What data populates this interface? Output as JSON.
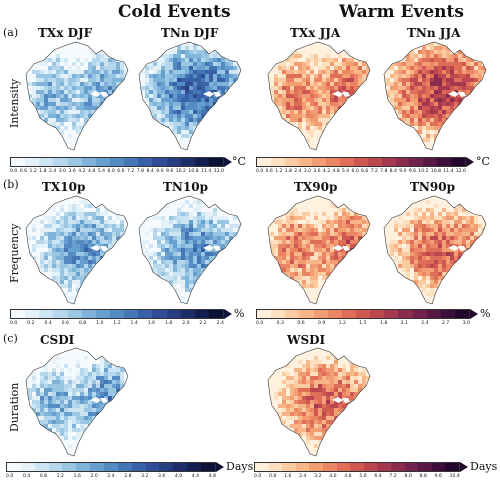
{
  "headers": {
    "cold": "Cold Events",
    "warm": "Warm Events"
  },
  "rows": [
    {
      "label": "(a)",
      "name": "Intensity"
    },
    {
      "label": "(b)",
      "name": "Frequency"
    },
    {
      "label": "(c)",
      "name": "Duration"
    }
  ],
  "panels": {
    "txx_djf": "TXx DJF",
    "tnn_djf": "TNn DJF",
    "txx_jja": "TXx JJA",
    "tnn_jja": "TNn JJA",
    "tx10p": "TX10p",
    "tn10p": "TN10p",
    "tx90p": "TX90p",
    "tn90p": "TN90p",
    "csdi": "CSDI",
    "wsdi": "WSDI"
  },
  "colorbars": {
    "intensity_cold": {
      "unit": "°C",
      "ticks": [
        "0.0",
        "0.6",
        "1.2",
        "1.8",
        "2.4",
        "3.0",
        "3.6",
        "4.2",
        "4.8",
        "5.4",
        "6.0",
        "6.6",
        "7.2",
        "7.8",
        "8.4",
        "9.0",
        "9.6",
        "10.2",
        "10.8",
        "11.4",
        "12.0"
      ]
    },
    "intensity_warm": {
      "unit": "°C",
      "ticks": [
        "0.0",
        "0.6",
        "1.2",
        "1.8",
        "2.4",
        "3.0",
        "3.6",
        "4.2",
        "4.8",
        "5.4",
        "6.0",
        "6.6",
        "7.2",
        "7.8",
        "8.4",
        "9.0",
        "9.6",
        "10.2",
        "10.8",
        "11.4",
        "12.0"
      ]
    },
    "frequency_cold": {
      "unit": "%",
      "ticks": [
        "0.0",
        "0.2",
        "0.4",
        "0.6",
        "0.8",
        "1.0",
        "1.2",
        "1.4",
        "1.6",
        "1.8",
        "2.0",
        "2.2",
        "2.4"
      ]
    },
    "frequency_warm": {
      "unit": "%",
      "ticks": [
        "0.0",
        "0.3",
        "0.6",
        "0.9",
        "1.2",
        "1.5",
        "1.8",
        "2.1",
        "2.4",
        "2.7",
        "3.0"
      ]
    },
    "duration_cold": {
      "unit": "Days",
      "ticks": [
        "0.0",
        "0.4",
        "0.8",
        "1.2",
        "1.6",
        "2.0",
        "2.4",
        "2.8",
        "3.2",
        "3.6",
        "4.0",
        "4.4",
        "4.8"
      ]
    },
    "duration_warm": {
      "unit": "Days",
      "ticks": [
        "0.0",
        "0.8",
        "1.6",
        "2.4",
        "3.2",
        "4.0",
        "4.8",
        "5.6",
        "6.4",
        "7.2",
        "8.0",
        "8.8",
        "9.6",
        "10.4"
      ]
    }
  },
  "palette": {
    "cold": [
      "#f4fafd",
      "#e4f1f9",
      "#cde5f3",
      "#b4d7ec",
      "#98c6e3",
      "#7fb3d9",
      "#679fce",
      "#538bc2",
      "#4476b5",
      "#3961a7",
      "#2f4e95",
      "#263d80",
      "#1d2d68",
      "#141e50",
      "#0b1236"
    ],
    "warm": [
      "#fff1dd",
      "#fde0c0",
      "#fbcba2",
      "#f8b588",
      "#f39d73",
      "#eb8563",
      "#df6e58",
      "#cf5951",
      "#bb474f",
      "#a4384f",
      "#8b2c4f",
      "#72214c",
      "#591746",
      "#3f0f3c",
      "#24072c"
    ]
  }
}
